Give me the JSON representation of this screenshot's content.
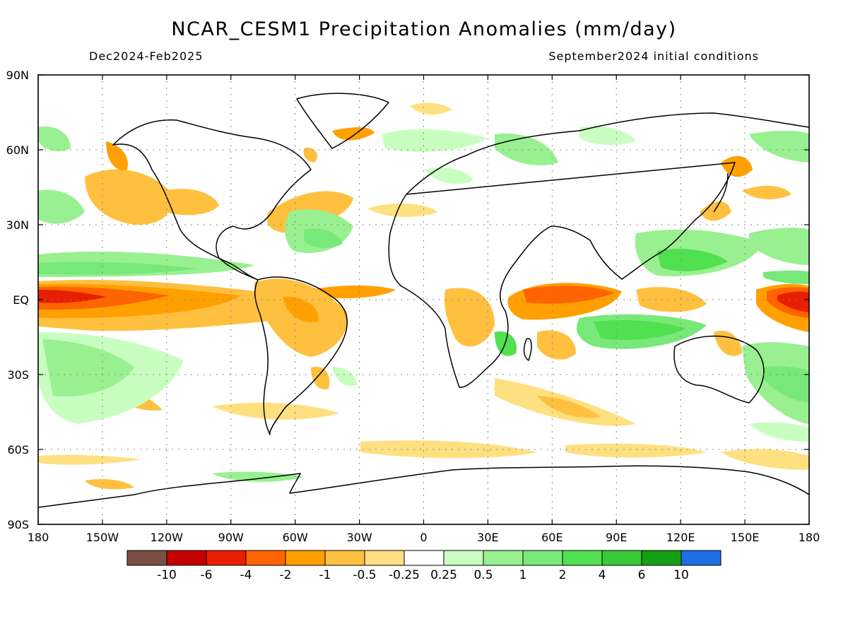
{
  "title": "NCAR_CESM1 Precipitation Anomalies (mm/day)",
  "period": "Dec2024-Feb2025",
  "initial_conditions": "September2024 initial conditions",
  "lat_labels": [
    "90N",
    "60N",
    "30N",
    "EQ",
    "30S",
    "60S",
    "90S"
  ],
  "lon_labels": [
    "180",
    "150W",
    "120W",
    "90W",
    "60W",
    "30W",
    "0",
    "30E",
    "60E",
    "90E",
    "120E",
    "150E",
    "180"
  ],
  "legend": {
    "colors": [
      "#7b4f45",
      "#c40000",
      "#e81e00",
      "#ff6400",
      "#ffa000",
      "#ffc040",
      "#ffe080",
      "#ffffff",
      "#c8ffc0",
      "#98f090",
      "#78e878",
      "#50e050",
      "#38c838",
      "#14a014",
      "#1e6ee6"
    ],
    "labels": [
      "-10",
      "-6",
      "-4",
      "-2",
      "-1",
      "-0.5",
      "-0.25",
      "0.25",
      "0.5",
      "1",
      "2",
      "4",
      "6",
      "10"
    ]
  }
}
